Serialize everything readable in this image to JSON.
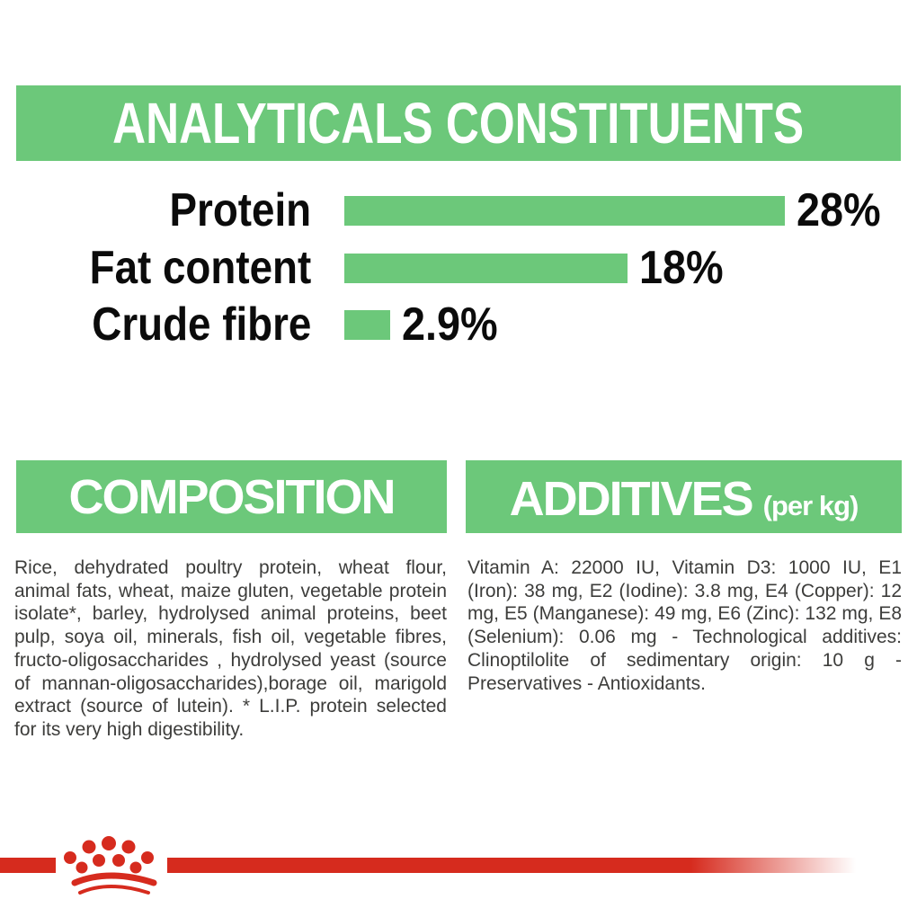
{
  "header": {
    "title": "ANALYTICALS CONSTITUENTS"
  },
  "chart_data": {
    "type": "bar",
    "orientation": "horizontal",
    "categories": [
      "Protein",
      "Fat content",
      "Crude fibre"
    ],
    "values": [
      28,
      18,
      2.9
    ],
    "value_labels": [
      "28%",
      "18%",
      "2.9%"
    ],
    "unit": "%",
    "bar_color": "#6CC87A",
    "xlim": [
      0,
      35
    ],
    "grid": false,
    "legend": false,
    "title": "ANALYTICALS CONSTITUENTS"
  },
  "composition": {
    "title": "COMPOSITION",
    "body": "Rice, dehydrated poultry protein, wheat flour, animal fats, wheat, maize gluten, vegetable protein isolate*, barley, hydrolysed animal proteins, beet pulp, soya oil, minerals, fish oil, vegetable fibres, fructo-oligosaccharides , hydrolysed yeast (source of mannan-oligosaccharides),borage oil, marigold extract (source of lutein). * L.I.P. protein selected for its very high digestibility."
  },
  "additives": {
    "title": "ADDITIVES",
    "title_suffix": "(per kg)",
    "body": "Vitamin A: 22000 IU, Vitamin D3: 1000 IU, E1 (Iron): 38 mg, E2 (Iodine): 3.8 mg, E4 (Copper): 12 mg, E5 (Manganese): 49 mg, E6 (Zinc): 132 mg, E8 (Selenium): 0.06 mg - Technological additives: Clinoptilolite of sedimentary origin: 10 g - Preservatives - Antioxidants."
  },
  "footer": {
    "logo": "royal-canin-crown-logo"
  },
  "colors": {
    "green": "#6CC87A",
    "red": "#D62B1E",
    "body_text": "#3D3D3B",
    "heading_text": "#FFFFFF",
    "label_text": "#0B0B0B"
  }
}
